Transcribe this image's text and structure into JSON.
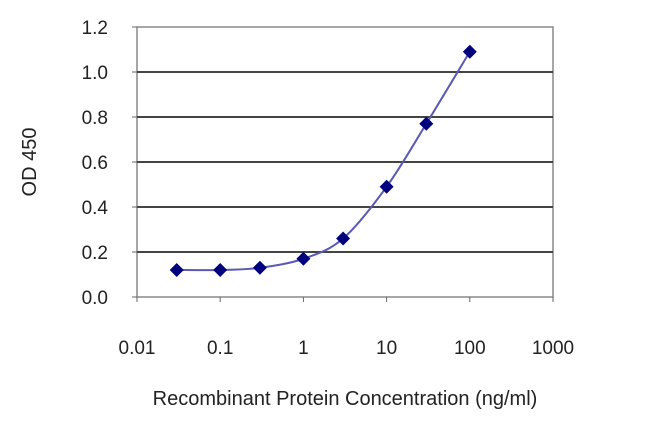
{
  "chart_data": {
    "type": "line",
    "title": "",
    "xlabel": "Recombinant Protein Concentration (ng/ml)",
    "ylabel": "OD 450",
    "xscale": "log",
    "xlim": [
      0.01,
      1000
    ],
    "ylim": [
      0,
      1.2
    ],
    "xticks": [
      "0.01",
      "0.1",
      "1",
      "10",
      "100",
      "1000"
    ],
    "xtick_values": [
      0.01,
      0.1,
      1,
      10,
      100,
      1000
    ],
    "yticks": [
      "0.0",
      "0.2",
      "0.4",
      "0.6",
      "0.8",
      "1.0",
      "1.2"
    ],
    "ytick_values": [
      0,
      0.2,
      0.4,
      0.6,
      0.8,
      1.0,
      1.2
    ],
    "grid": "horizontal",
    "legend": "none",
    "series": [
      {
        "name": "OD 450",
        "color": "#00007f",
        "line_color": "#5a5ab4",
        "x": [
          0.03,
          0.1,
          0.3,
          1,
          3,
          10,
          30,
          100
        ],
        "y": [
          0.12,
          0.12,
          0.13,
          0.17,
          0.26,
          0.49,
          0.77,
          1.09
        ]
      }
    ]
  }
}
